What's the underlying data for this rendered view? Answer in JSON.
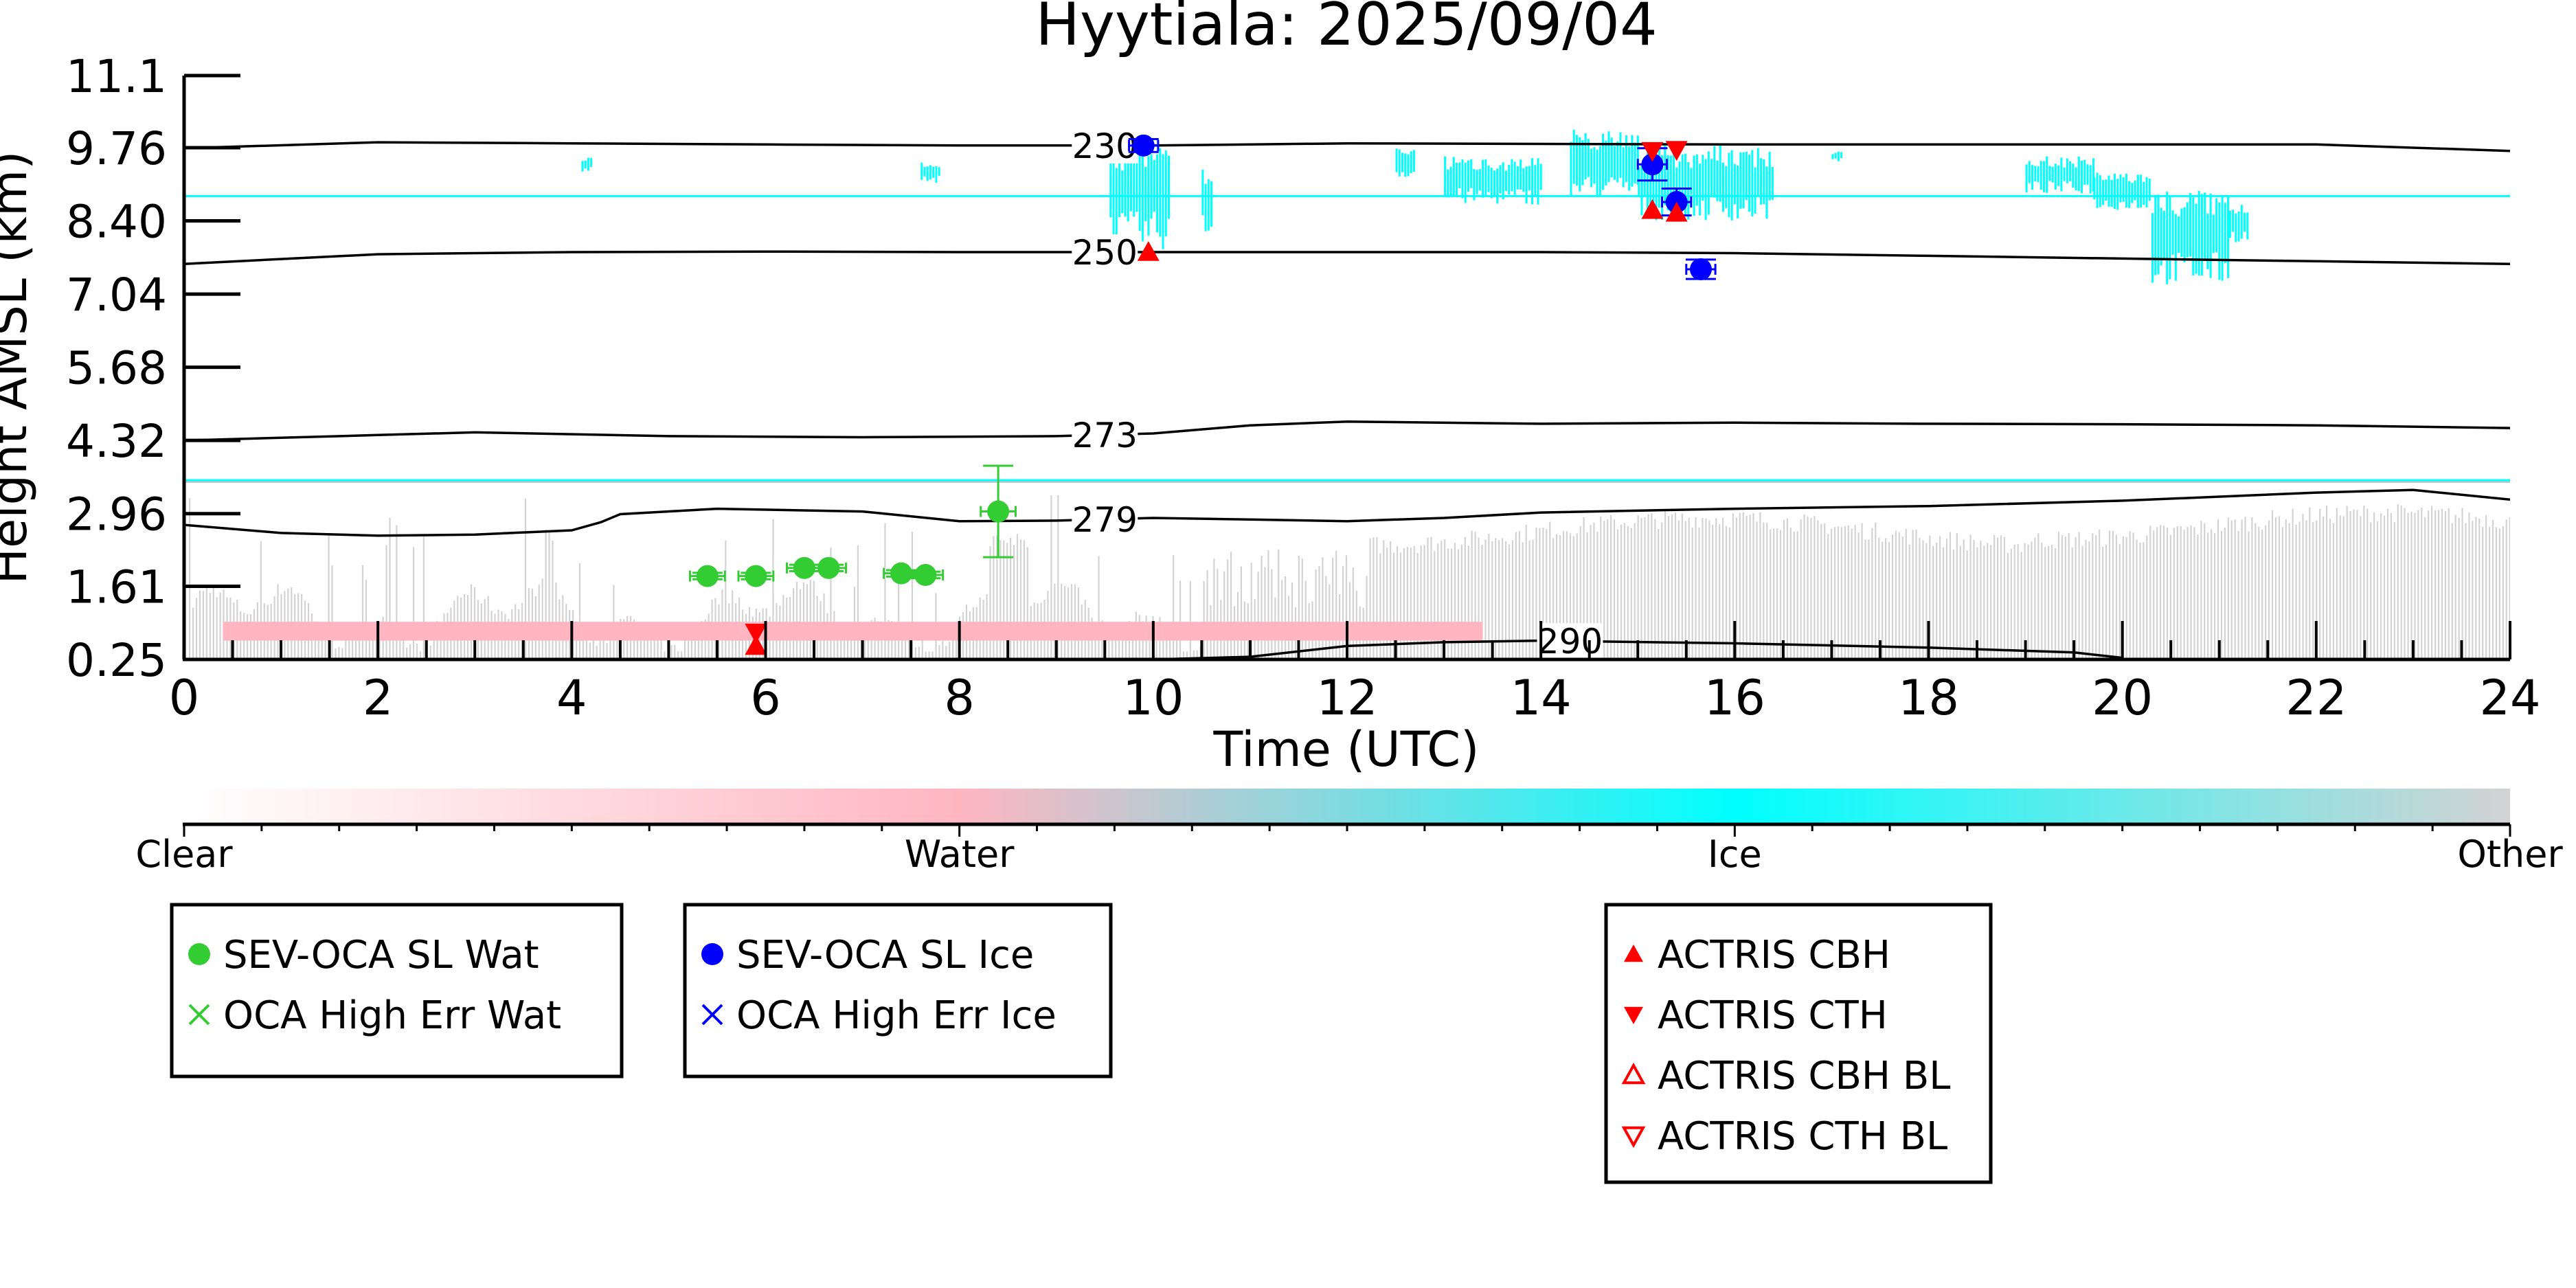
{
  "chart_data": {
    "type": "scatter",
    "title": "Hyytiala: 2025/09/04",
    "xlabel": "Time (UTC)",
    "ylabel": "Height AMSL (km)",
    "xlim": [
      0,
      24
    ],
    "ylim": [
      0.25,
      11.1
    ],
    "x_ticks": [
      0,
      2,
      4,
      6,
      8,
      10,
      12,
      14,
      16,
      18,
      20,
      22,
      24
    ],
    "y_ticks": [
      "0.25",
      "1.61",
      "2.96",
      "4.32",
      "5.68",
      "7.04",
      "8.40",
      "9.76",
      "11.1"
    ],
    "colorbar": {
      "labels": [
        "Clear",
        "Water",
        "Ice",
        "Other"
      ],
      "colors": {
        "clear": "#ffffff",
        "water": "#ffb6c1",
        "ice": "#00ffff",
        "other": "#d3d3d3"
      }
    },
    "contours": [
      {
        "label": "230",
        "label_x": 9.5,
        "points": [
          [
            0,
            9.75
          ],
          [
            2,
            9.86
          ],
          [
            4,
            9.84
          ],
          [
            6,
            9.82
          ],
          [
            8,
            9.8
          ],
          [
            10,
            9.8
          ],
          [
            12,
            9.84
          ],
          [
            14,
            9.83
          ],
          [
            16,
            9.82
          ],
          [
            18,
            9.82
          ],
          [
            20,
            9.82
          ],
          [
            22,
            9.82
          ],
          [
            24,
            9.7
          ]
        ]
      },
      {
        "label": "250",
        "label_x": 9.5,
        "points": [
          [
            0,
            7.6
          ],
          [
            2,
            7.78
          ],
          [
            4,
            7.82
          ],
          [
            6,
            7.83
          ],
          [
            8,
            7.82
          ],
          [
            10,
            7.82
          ],
          [
            12,
            7.82
          ],
          [
            14,
            7.82
          ],
          [
            16,
            7.8
          ],
          [
            18,
            7.75
          ],
          [
            20,
            7.7
          ],
          [
            22,
            7.65
          ],
          [
            24,
            7.6
          ]
        ]
      },
      {
        "label": "273",
        "label_x": 9.5,
        "points": [
          [
            0,
            4.32
          ],
          [
            2,
            4.42
          ],
          [
            3,
            4.47
          ],
          [
            5,
            4.4
          ],
          [
            7,
            4.38
          ],
          [
            9,
            4.4
          ],
          [
            10,
            4.45
          ],
          [
            11,
            4.6
          ],
          [
            12,
            4.67
          ],
          [
            14,
            4.63
          ],
          [
            16,
            4.65
          ],
          [
            18,
            4.63
          ],
          [
            20,
            4.62
          ],
          [
            22,
            4.6
          ],
          [
            24,
            4.55
          ]
        ]
      },
      {
        "label": "279",
        "label_x": 9.5,
        "points": [
          [
            0,
            2.75
          ],
          [
            1,
            2.6
          ],
          [
            2,
            2.55
          ],
          [
            3,
            2.57
          ],
          [
            4,
            2.65
          ],
          [
            4.3,
            2.8
          ],
          [
            4.5,
            2.95
          ],
          [
            5.5,
            3.05
          ],
          [
            7,
            3.0
          ],
          [
            8,
            2.82
          ],
          [
            9,
            2.83
          ],
          [
            10,
            2.88
          ],
          [
            11,
            2.85
          ],
          [
            12,
            2.82
          ],
          [
            13,
            2.88
          ],
          [
            14,
            2.98
          ],
          [
            16,
            3.05
          ],
          [
            18,
            3.1
          ],
          [
            20,
            3.2
          ],
          [
            22,
            3.35
          ],
          [
            23,
            3.4
          ],
          [
            24,
            3.22
          ]
        ]
      },
      {
        "label": "290",
        "label_x": 14.3,
        "points": [
          [
            10,
            0.25
          ],
          [
            11,
            0.3
          ],
          [
            12,
            0.5
          ],
          [
            13,
            0.57
          ],
          [
            14,
            0.6
          ],
          [
            16,
            0.55
          ],
          [
            18,
            0.47
          ],
          [
            19.5,
            0.38
          ],
          [
            20,
            0.28
          ]
        ]
      }
    ],
    "series": [
      {
        "name": "SEV-OCA SL Wat",
        "marker": "circle",
        "color": "#33cc33",
        "points": [
          [
            5.4,
            1.8
          ],
          [
            5.9,
            1.8
          ],
          [
            6.4,
            1.95
          ],
          [
            6.65,
            1.95
          ],
          [
            7.4,
            1.85
          ],
          [
            7.65,
            1.82
          ],
          [
            8.4,
            3.0
          ]
        ],
        "xerr": 0.18,
        "yerr": [
          0.06,
          0.06,
          0.06,
          0.06,
          0.06,
          0.06,
          0.85
        ]
      },
      {
        "name": "OCA High Err Wat",
        "marker": "x",
        "color": "#33cc33",
        "points": []
      },
      {
        "name": "SEV-OCA SL Ice",
        "marker": "circle",
        "color": "#0000ff",
        "points": [
          [
            9.9,
            9.8
          ],
          [
            15.15,
            9.45
          ],
          [
            15.4,
            8.75
          ],
          [
            15.65,
            7.5
          ]
        ],
        "xerr": 0.15,
        "yerr": [
          0.12,
          0.3,
          0.25,
          0.18
        ]
      },
      {
        "name": "OCA High Err Ice",
        "marker": "x",
        "color": "#0000ff",
        "points": []
      },
      {
        "name": "ACTRIS CBH",
        "marker": "triangle-up",
        "color": "#ff0000",
        "points": [
          [
            9.95,
            7.82
          ],
          [
            5.9,
            0.5
          ],
          [
            15.15,
            8.6
          ],
          [
            15.4,
            8.55
          ]
        ]
      },
      {
        "name": "ACTRIS CTH",
        "marker": "triangle-down",
        "color": "#ff0000",
        "points": [
          [
            5.9,
            0.75
          ],
          [
            15.15,
            9.7
          ],
          [
            15.4,
            9.72
          ]
        ]
      },
      {
        "name": "ACTRIS CBH BL",
        "marker": "triangle-up-open",
        "color": "#ff0000",
        "points": []
      },
      {
        "name": "ACTRIS CTH BL",
        "marker": "triangle-down-open",
        "color": "#ff0000",
        "points": []
      }
    ],
    "legend_groups": [
      [
        "SEV-OCA SL Wat",
        "OCA High Err Wat"
      ],
      [
        "SEV-OCA SL Ice",
        "OCA High Err Ice"
      ],
      [
        "ACTRIS CBH",
        "ACTRIS CTH",
        "ACTRIS CBH BL",
        "ACTRIS CTH BL"
      ]
    ]
  }
}
